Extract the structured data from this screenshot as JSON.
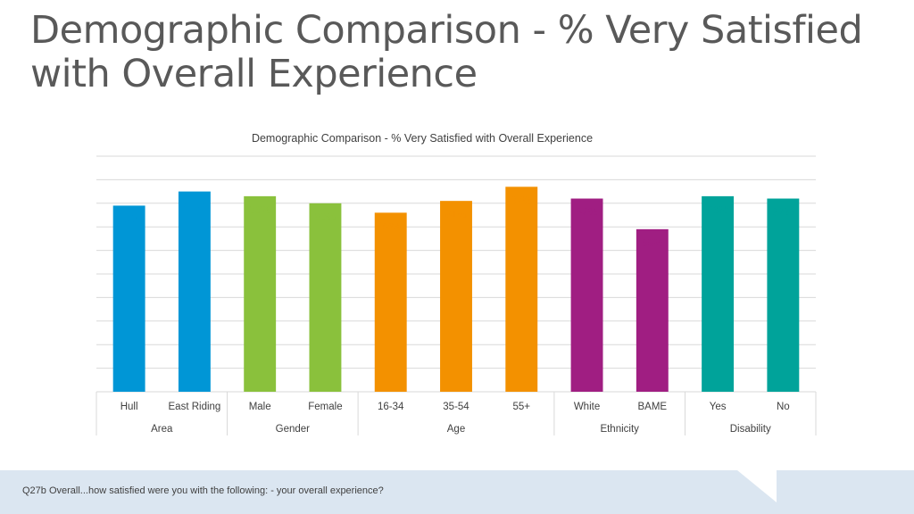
{
  "slide": {
    "title": "Demographic Comparison - % Very Satisfied with Overall Experience",
    "footer": "Q27b Overall...how satisfied were you with the following: - your overall experience?"
  },
  "colors": {
    "grid": "#d9d9d9",
    "text": "#404040",
    "footer_bg": "#dbe6f1"
  },
  "chart_data": {
    "type": "bar",
    "title": "Demographic Comparison - % Very Satisfied with Overall Experience",
    "ylim": [
      0,
      100
    ],
    "grid": true,
    "legend": "none",
    "value_suffix": "%",
    "groups": [
      {
        "name": "Area",
        "color": "#0096d6",
        "categories": [
          "Hull",
          "East Riding"
        ],
        "values": [
          79,
          85
        ]
      },
      {
        "name": "Gender",
        "color": "#8ac13c",
        "categories": [
          "Male",
          "Female"
        ],
        "values": [
          83,
          80
        ]
      },
      {
        "name": "Age",
        "color": "#f39100",
        "categories": [
          "16-34",
          "35-54",
          "55+"
        ],
        "values": [
          76,
          81,
          87
        ]
      },
      {
        "name": "Ethnicity",
        "color": "#a01e82",
        "categories": [
          "White",
          "BAME"
        ],
        "values": [
          82,
          69
        ]
      },
      {
        "name": "Disability",
        "color": "#00a39a",
        "categories": [
          "Yes",
          "No"
        ],
        "values": [
          83,
          82
        ]
      }
    ]
  }
}
